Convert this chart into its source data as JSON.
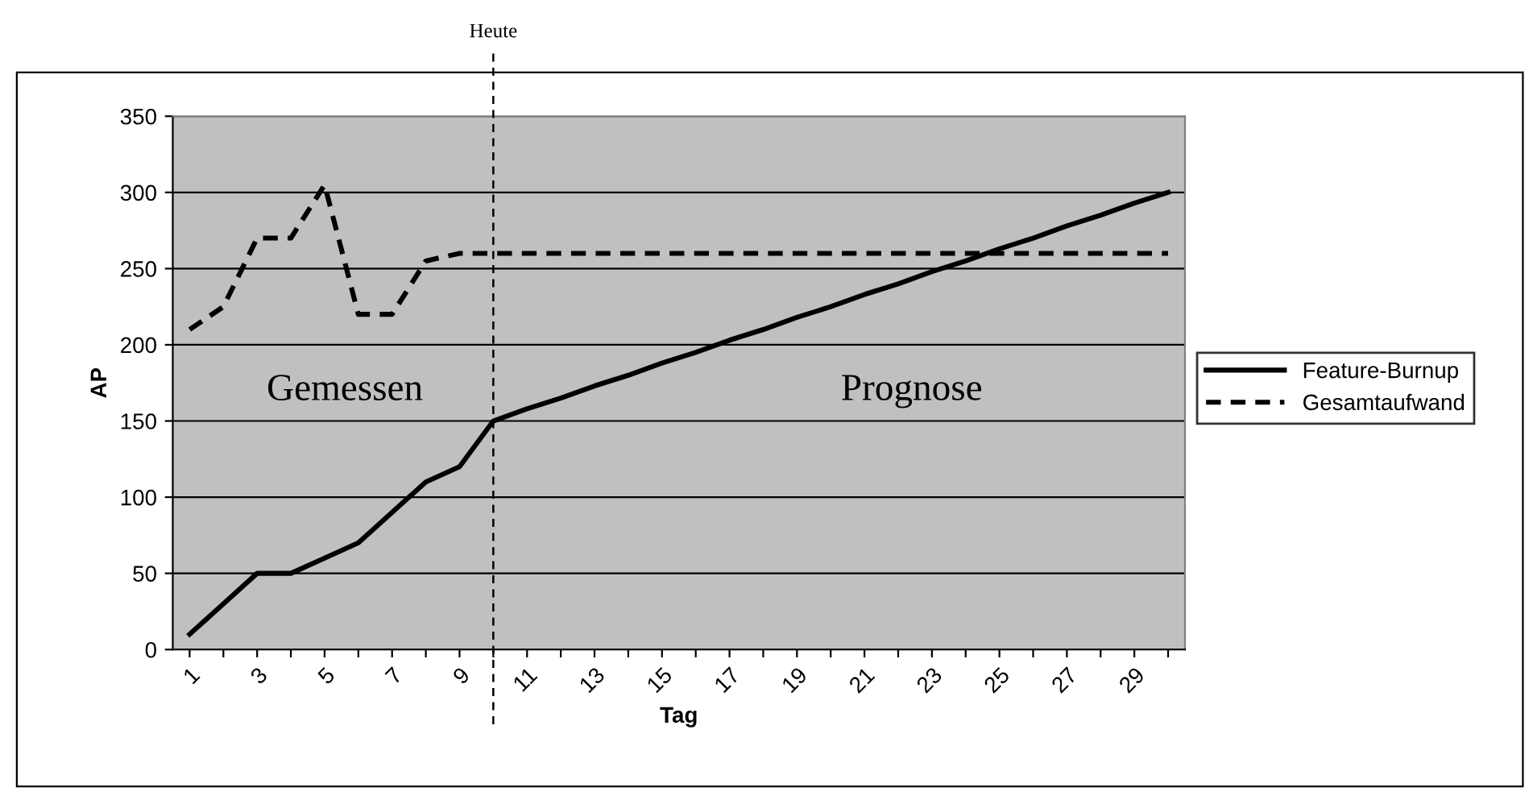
{
  "chart_data": {
    "type": "line",
    "xlabel": "Tag",
    "ylabel": "AP",
    "x": [
      1,
      2,
      3,
      4,
      5,
      6,
      7,
      8,
      9,
      10,
      11,
      12,
      13,
      14,
      15,
      16,
      17,
      18,
      19,
      20,
      21,
      22,
      23,
      24,
      25,
      26,
      27,
      28,
      29,
      30
    ],
    "xlim": [
      0.5,
      30.5
    ],
    "xticks": [
      1,
      {
        "value": 2,
        "label": null
      },
      3,
      {
        "value": 4,
        "label": null
      },
      5,
      {
        "value": 6,
        "label": null
      },
      7,
      {
        "value": 8,
        "label": null
      },
      9,
      {
        "value": 10,
        "label": null
      },
      11,
      {
        "value": 12,
        "label": null
      },
      13,
      {
        "value": 14,
        "label": null
      },
      15,
      {
        "value": 16,
        "label": null
      },
      17,
      {
        "value": 18,
        "label": null
      },
      19,
      {
        "value": 20,
        "label": null
      },
      21,
      {
        "value": 22,
        "label": null
      },
      23,
      {
        "value": 24,
        "label": null
      },
      25,
      {
        "value": 26,
        "label": null
      },
      27,
      {
        "value": 28,
        "label": null
      },
      29,
      {
        "value": 30,
        "label": null
      }
    ],
    "ylim": [
      0,
      350
    ],
    "yticks": [
      0,
      50,
      100,
      150,
      200,
      250,
      300,
      350
    ],
    "series": [
      {
        "name": "Feature-Burnup",
        "color": "#000000",
        "line_style": "solid",
        "values": [
          10,
          30,
          50,
          50,
          60,
          70,
          90,
          110,
          120,
          150,
          158,
          165,
          173,
          180,
          188,
          195,
          203,
          210,
          218,
          225,
          233,
          240,
          248,
          255,
          263,
          270,
          278,
          285,
          293,
          300
        ]
      },
      {
        "name": "Gesamtaufwand",
        "color": "#000000",
        "line_style": "dashed",
        "values": [
          210,
          225,
          270,
          270,
          305,
          220,
          220,
          255,
          260,
          260,
          260,
          260,
          260,
          260,
          260,
          260,
          260,
          260,
          260,
          260,
          260,
          260,
          260,
          260,
          260,
          260,
          260,
          260,
          260,
          260
        ]
      }
    ],
    "ref_lines": [
      {
        "axis": "x",
        "value": 10,
        "label": "Heute",
        "color": "#000000",
        "line_style": "dashed"
      }
    ],
    "annotations": [
      "Gemessen",
      "Prognose"
    ],
    "grid": "y",
    "legend": "right",
    "marker": "none"
  }
}
